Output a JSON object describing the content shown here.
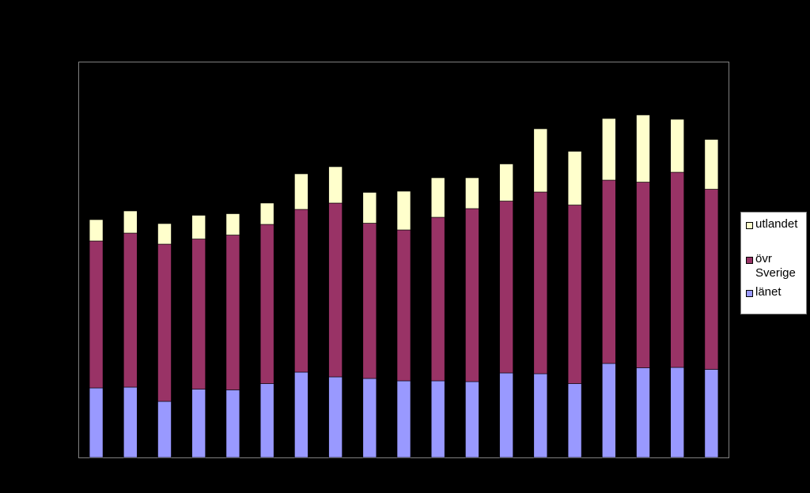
{
  "chart_data": {
    "type": "bar",
    "stacked": true,
    "title": "",
    "xlabel": "",
    "ylabel": "",
    "ylim": [
      0,
      100
    ],
    "grid": false,
    "legend_position": "right",
    "categories": [
      "",
      "",
      "",
      "",
      "",
      "",
      "",
      "",
      "",
      "",
      "",
      "",
      "",
      "",
      "",
      "",
      "",
      "",
      ""
    ],
    "series": [
      {
        "name": "länet",
        "color": "#9999ff",
        "values": [
          17.6,
          17.8,
          14.2,
          17.3,
          17.1,
          18.7,
          21.6,
          20.4,
          20.0,
          19.4,
          19.4,
          19.2,
          21.4,
          21.2,
          18.7,
          23.8,
          22.7,
          22.8,
          22.3
        ]
      },
      {
        "name": "övr\nSverige",
        "color": "#993366",
        "values": [
          37.2,
          39.0,
          39.8,
          38.0,
          39.2,
          40.3,
          41.2,
          44.0,
          39.3,
          38.2,
          41.4,
          43.8,
          43.5,
          46.0,
          45.2,
          46.4,
          47.0,
          49.4,
          45.6
        ]
      },
      {
        "name": "utlandet",
        "color": "#ffffcc",
        "values": [
          5.4,
          5.6,
          5.2,
          6.0,
          5.4,
          5.4,
          9.0,
          9.2,
          7.8,
          9.8,
          10.0,
          7.8,
          9.4,
          16.0,
          13.6,
          15.6,
          17.0,
          13.4,
          12.6
        ]
      }
    ]
  }
}
